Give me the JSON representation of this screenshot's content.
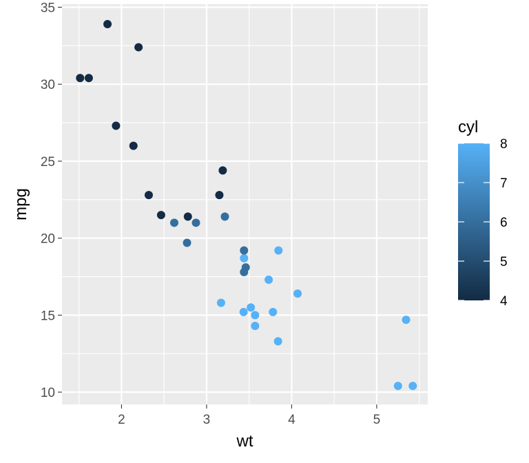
{
  "chart_data": {
    "type": "scatter",
    "xlabel": "wt",
    "ylabel": "mpg",
    "xlim": [
      1.3,
      5.6
    ],
    "ylim": [
      9.2,
      35.2
    ],
    "x_ticks": [
      2,
      3,
      4,
      5
    ],
    "y_ticks": [
      10,
      15,
      20,
      25,
      30,
      35
    ],
    "grid": true,
    "colors": {
      "panel_bg": "#EBEBEB",
      "grid": "#FFFFFF",
      "low": "#132B43",
      "high": "#56B1F7"
    },
    "legend": {
      "title": "cyl",
      "position": "right",
      "type": "colorbar",
      "min": 4,
      "max": 8,
      "ticks": [
        4,
        5,
        6,
        7,
        8
      ]
    },
    "points": [
      {
        "wt": 2.62,
        "mpg": 21.0,
        "cyl": 6
      },
      {
        "wt": 2.875,
        "mpg": 21.0,
        "cyl": 6
      },
      {
        "wt": 2.32,
        "mpg": 22.8,
        "cyl": 4
      },
      {
        "wt": 3.215,
        "mpg": 21.4,
        "cyl": 6
      },
      {
        "wt": 3.44,
        "mpg": 18.7,
        "cyl": 8
      },
      {
        "wt": 3.46,
        "mpg": 18.1,
        "cyl": 6
      },
      {
        "wt": 3.57,
        "mpg": 14.3,
        "cyl": 8
      },
      {
        "wt": 3.19,
        "mpg": 24.4,
        "cyl": 4
      },
      {
        "wt": 3.15,
        "mpg": 22.8,
        "cyl": 4
      },
      {
        "wt": 3.44,
        "mpg": 19.2,
        "cyl": 6
      },
      {
        "wt": 3.44,
        "mpg": 17.8,
        "cyl": 6
      },
      {
        "wt": 4.07,
        "mpg": 16.4,
        "cyl": 8
      },
      {
        "wt": 3.73,
        "mpg": 17.3,
        "cyl": 8
      },
      {
        "wt": 3.78,
        "mpg": 15.2,
        "cyl": 8
      },
      {
        "wt": 5.25,
        "mpg": 10.4,
        "cyl": 8
      },
      {
        "wt": 5.424,
        "mpg": 10.4,
        "cyl": 8
      },
      {
        "wt": 5.345,
        "mpg": 14.7,
        "cyl": 8
      },
      {
        "wt": 2.2,
        "mpg": 32.4,
        "cyl": 4
      },
      {
        "wt": 1.615,
        "mpg": 30.4,
        "cyl": 4
      },
      {
        "wt": 1.835,
        "mpg": 33.9,
        "cyl": 4
      },
      {
        "wt": 2.465,
        "mpg": 21.5,
        "cyl": 4
      },
      {
        "wt": 3.52,
        "mpg": 15.5,
        "cyl": 8
      },
      {
        "wt": 3.435,
        "mpg": 15.2,
        "cyl": 8
      },
      {
        "wt": 3.84,
        "mpg": 13.3,
        "cyl": 8
      },
      {
        "wt": 3.845,
        "mpg": 19.2,
        "cyl": 8
      },
      {
        "wt": 1.935,
        "mpg": 27.3,
        "cyl": 4
      },
      {
        "wt": 2.14,
        "mpg": 26.0,
        "cyl": 4
      },
      {
        "wt": 1.513,
        "mpg": 30.4,
        "cyl": 4
      },
      {
        "wt": 3.17,
        "mpg": 15.8,
        "cyl": 8
      },
      {
        "wt": 2.77,
        "mpg": 19.7,
        "cyl": 6
      },
      {
        "wt": 3.57,
        "mpg": 15.0,
        "cyl": 8
      },
      {
        "wt": 2.78,
        "mpg": 21.4,
        "cyl": 4
      }
    ]
  }
}
